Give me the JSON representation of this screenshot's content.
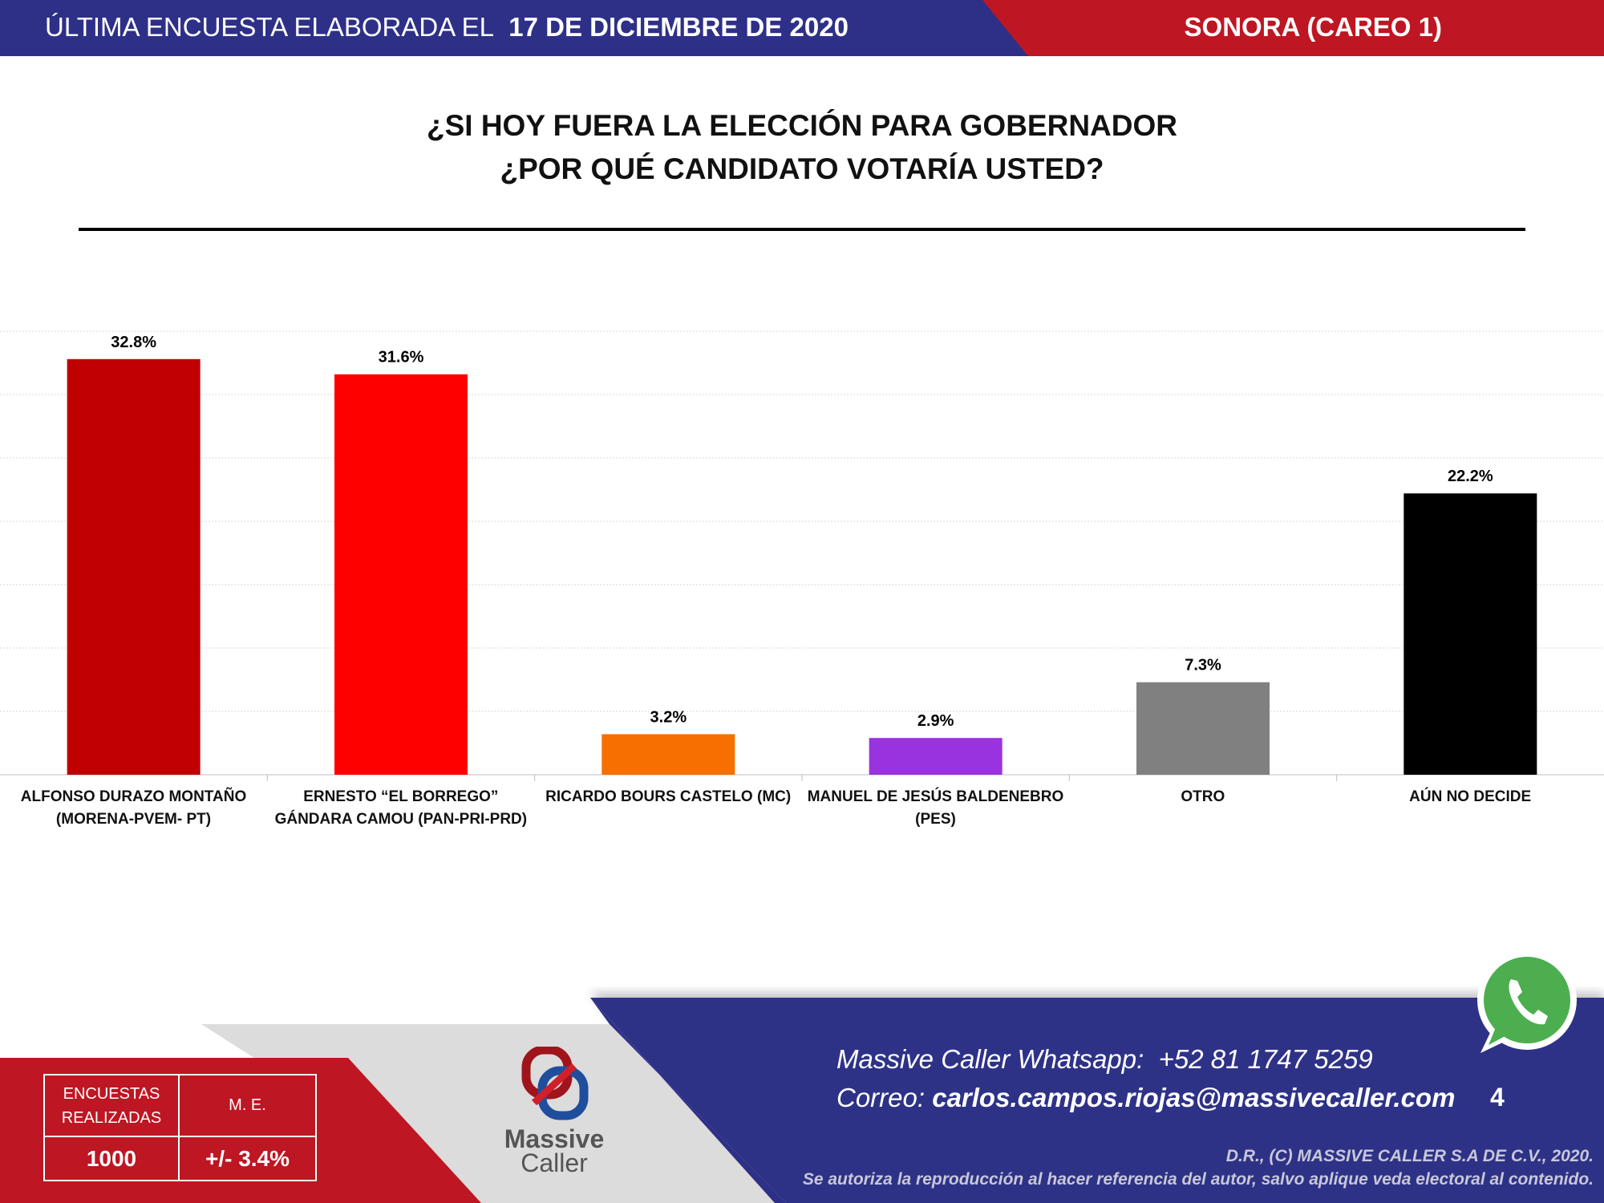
{
  "header": {
    "left_label": "ÚLTIMA ENCUESTA ELABORADA EL",
    "date": "17 DE DICIEMBRE DE 2020",
    "region": "SONORA (CAREO 1)",
    "blue": "#2e3087",
    "red": "#be1622"
  },
  "chart_data": {
    "type": "bar",
    "title": [
      "¿SI HOY FUERA LA ELECCIÓN PARA GOBERNADOR",
      "¿POR QUÉ CANDIDATO VOTARÍA USTED?"
    ],
    "categories": [
      [
        "ALFONSO DURAZO MONTAÑO",
        "(MORENA-PVEM- PT)"
      ],
      [
        "ERNESTO “EL BORREGO”",
        "GÁNDARA CAMOU  (PAN-PRI-PRD)"
      ],
      [
        "RICARDO BOURS CASTELO (MC)",
        ""
      ],
      [
        "MANUEL DE JESÚS BALDENEBRO",
        "(PES)"
      ],
      [
        "OTRO",
        ""
      ],
      [
        "AÚN NO DECIDE",
        ""
      ]
    ],
    "values": [
      32.8,
      31.6,
      3.2,
      2.9,
      7.3,
      22.2
    ],
    "labels": [
      "32.8%",
      "31.6%",
      "3.2%",
      "2.9%",
      "7.3%",
      "22.2%"
    ],
    "colors": [
      "#c00000",
      "#ff0000",
      "#f57000",
      "#9933e0",
      "#808080",
      "#000000"
    ],
    "ylim": [
      0,
      35
    ],
    "grid": true,
    "gridline_step": 5,
    "legend": "none"
  },
  "stats": {
    "surveys_label_1": "ENCUESTAS",
    "surveys_label_2": "REALIZADAS",
    "surveys_value": "1000",
    "me_label": "M. E.",
    "me_value": "+/- 3.4%"
  },
  "logo": {
    "line1": "Massive",
    "line2": "Caller"
  },
  "contact": {
    "whatsapp_label": "Massive Caller Whatsapp:",
    "whatsapp_number": "+52 81 1747 5259",
    "email_label": "Correo:",
    "email": "carlos.campos.riojas@massivecaller.com",
    "page": "4"
  },
  "copyright": {
    "line1": "D.R., (C) MASSIVE CALLER S.A DE C.V., 2020.",
    "line2": "Se autoriza la reproducción al hacer referencia del autor, salvo aplique veda electoral al contenido."
  }
}
